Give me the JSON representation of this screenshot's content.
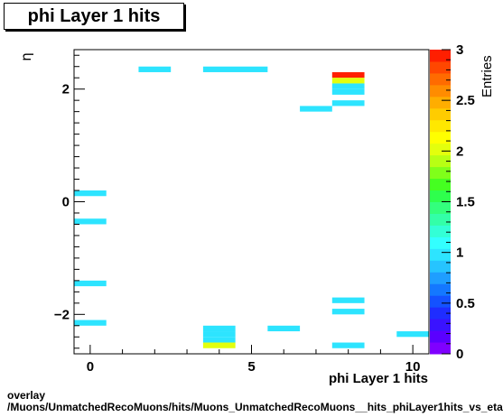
{
  "chart_data": {
    "type": "heatmap",
    "title": "phi Layer 1 hits",
    "xlabel": "phi Layer 1 hits",
    "ylabel": "η",
    "zlabel": "Entries",
    "xlim": [
      -0.5,
      10.5
    ],
    "ylim": [
      -2.7,
      2.7
    ],
    "zlim": [
      0,
      3
    ],
    "x_ticks": [
      0,
      5,
      10
    ],
    "y_ticks": [
      -2,
      0,
      2
    ],
    "z_ticks": [
      0,
      0.5,
      1,
      1.5,
      2,
      2.5,
      3
    ],
    "cells": [
      {
        "x0": 1.5,
        "x1": 2.5,
        "y0": 2.3,
        "y1": 2.4,
        "value": 1
      },
      {
        "x0": 3.5,
        "x1": 5.5,
        "y0": 2.3,
        "y1": 2.4,
        "value": 1
      },
      {
        "x0": 7.5,
        "x1": 8.5,
        "y0": 2.2,
        "y1": 2.3,
        "value": 3
      },
      {
        "x0": 7.5,
        "x1": 8.5,
        "y0": 2.1,
        "y1": 2.2,
        "value": 2
      },
      {
        "x0": 7.5,
        "x1": 8.5,
        "y0": 2.0,
        "y1": 2.1,
        "value": 1
      },
      {
        "x0": 7.5,
        "x1": 8.5,
        "y0": 1.9,
        "y1": 2.0,
        "value": 1
      },
      {
        "x0": 7.5,
        "x1": 8.5,
        "y0": 1.7,
        "y1": 1.8,
        "value": 1
      },
      {
        "x0": 6.5,
        "x1": 7.5,
        "y0": 1.6,
        "y1": 1.7,
        "value": 1
      },
      {
        "x0": -0.5,
        "x1": 0.5,
        "y0": 0.1,
        "y1": 0.2,
        "value": 1
      },
      {
        "x0": -0.5,
        "x1": 0.5,
        "y0": -0.4,
        "y1": -0.3,
        "value": 1
      },
      {
        "x0": -0.5,
        "x1": 0.5,
        "y0": -1.5,
        "y1": -1.4,
        "value": 1
      },
      {
        "x0": 7.5,
        "x1": 8.5,
        "y0": -1.8,
        "y1": -1.7,
        "value": 1
      },
      {
        "x0": 7.5,
        "x1": 8.5,
        "y0": -2.0,
        "y1": -1.9,
        "value": 1
      },
      {
        "x0": -0.5,
        "x1": 0.5,
        "y0": -2.2,
        "y1": -2.1,
        "value": 1
      },
      {
        "x0": 3.5,
        "x1": 4.5,
        "y0": -2.3,
        "y1": -2.2,
        "value": 1
      },
      {
        "x0": 5.5,
        "x1": 6.5,
        "y0": -2.3,
        "y1": -2.2,
        "value": 1
      },
      {
        "x0": 3.5,
        "x1": 4.5,
        "y0": -2.4,
        "y1": -2.3,
        "value": 1
      },
      {
        "x0": 9.5,
        "x1": 10.5,
        "y0": -2.4,
        "y1": -2.3,
        "value": 1
      },
      {
        "x0": 3.5,
        "x1": 4.5,
        "y0": -2.5,
        "y1": -2.4,
        "value": 1
      },
      {
        "x0": 3.5,
        "x1": 4.5,
        "y0": -2.6,
        "y1": -2.5,
        "value": 2
      },
      {
        "x0": 7.5,
        "x1": 8.5,
        "y0": -2.6,
        "y1": -2.5,
        "value": 1
      }
    ],
    "palette": [
      "#7f00ff",
      "#5a00ff",
      "#3a13ff",
      "#1f2dff",
      "#1452ff",
      "#1478ff",
      "#1f9eff",
      "#26c4ff",
      "#2de4ff",
      "#33ffff",
      "#33ffd6",
      "#33ffa8",
      "#33ff7d",
      "#2eff4d",
      "#45ff21",
      "#80ff1a",
      "#b8ff14",
      "#e3ff0d",
      "#ffff00",
      "#ffe800",
      "#ffcc00",
      "#ffad00",
      "#ff8c00",
      "#ff6b00",
      "#ff4700",
      "#ff1f00"
    ]
  },
  "footer": {
    "line1": "overlay",
    "line2": "/Muons/UnmatchedRecoMuons/hits/Muons_UnmatchedRecoMuons__hits_phiLayer1hits_vs_eta"
  }
}
